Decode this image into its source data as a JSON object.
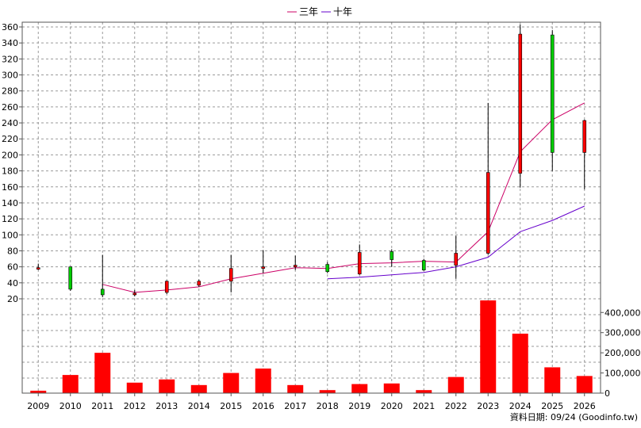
{
  "chart_data": {
    "type": "candlestick+bar",
    "years": [
      "2009",
      "2010",
      "2011",
      "2012",
      "2013",
      "2014",
      "2015",
      "2016",
      "2017",
      "2018",
      "2019",
      "2020",
      "2021",
      "2022",
      "2023",
      "2024",
      "2025",
      "2026"
    ],
    "legend": {
      "placement": "top-center",
      "items": [
        "三年",
        "十年"
      ]
    },
    "colors": {
      "up": "#ff0000",
      "down": "#00cc00",
      "volume": "#ff0000",
      "ma3": "#cc0066",
      "ma10": "#6600cc",
      "wick": "#000000"
    },
    "price_axis": {
      "min": 20,
      "max": 360,
      "ticks": [
        20,
        40,
        60,
        80,
        100,
        120,
        140,
        160,
        180,
        200,
        220,
        240,
        260,
        280,
        300,
        320,
        340,
        360
      ],
      "tick_labels": [
        "20",
        "40",
        "60",
        "80",
        "100",
        "120",
        "140",
        "160",
        "180",
        "200",
        "220",
        "240",
        "260",
        "280",
        "300",
        "320",
        "340",
        "360"
      ]
    },
    "volume_axis": {
      "min": 0,
      "max": 460000,
      "ticks": [
        0,
        100000,
        200000,
        300000,
        400000
      ],
      "tick_labels": [
        "0",
        "100,000",
        "200,000",
        "300,000",
        "400,000"
      ]
    },
    "candles": [
      {
        "year": "2009",
        "open": 59,
        "close": 59,
        "high": 64,
        "low": 56
      },
      {
        "year": "2010",
        "open": 60,
        "close": 32,
        "high": 60,
        "low": 30
      },
      {
        "year": "2011",
        "open": 32,
        "close": 25,
        "high": 75,
        "low": 22
      },
      {
        "year": "2012",
        "open": 26,
        "close": 27,
        "high": 31,
        "low": 23
      },
      {
        "year": "2013",
        "open": 28,
        "close": 42,
        "high": 43,
        "low": 26
      },
      {
        "year": "2014",
        "open": 37,
        "close": 42,
        "high": 44,
        "low": 35
      },
      {
        "year": "2015",
        "open": 42,
        "close": 58,
        "high": 75,
        "low": 28
      },
      {
        "year": "2016",
        "open": 59,
        "close": 60,
        "high": 81,
        "low": 52
      },
      {
        "year": "2017",
        "open": 60,
        "close": 62,
        "high": 74,
        "low": 56
      },
      {
        "year": "2018",
        "open": 63,
        "close": 54,
        "high": 66,
        "low": 52
      },
      {
        "year": "2019",
        "open": 51,
        "close": 78,
        "high": 88,
        "low": 50
      },
      {
        "year": "2020",
        "open": 79,
        "close": 69,
        "high": 82,
        "low": 60
      },
      {
        "year": "2021",
        "open": 68,
        "close": 56,
        "high": 70,
        "low": 55
      },
      {
        "year": "2022",
        "open": 62,
        "close": 77,
        "high": 99,
        "low": 45
      },
      {
        "year": "2023",
        "open": 77,
        "close": 178,
        "high": 265,
        "low": 75
      },
      {
        "year": "2024",
        "open": 177,
        "close": 351,
        "high": 363,
        "low": 159
      },
      {
        "year": "2025",
        "open": 350,
        "close": 203,
        "high": 356,
        "low": 180
      },
      {
        "year": "2026",
        "open": 203,
        "close": 243,
        "high": 244,
        "low": 157
      }
    ],
    "ma_series": [
      {
        "name": "三年",
        "start": "2011",
        "values": [
          38,
          28,
          31,
          35,
          45,
          52,
          59,
          58,
          64,
          65,
          67,
          66,
          104,
          204,
          244,
          265
        ]
      },
      {
        "name": "十年",
        "start": "2018",
        "values": [
          45,
          47,
          50,
          53,
          60,
          72,
          104,
          118,
          136
        ]
      }
    ],
    "volume": [
      12000,
      90000,
      200000,
      52000,
      68000,
      40000,
      100000,
      122000,
      40000,
      15000,
      45000,
      48000,
      15000,
      80000,
      460000,
      295000,
      128000,
      85000
    ],
    "footer": "資料日期: 09/24  (Goodinfo.tw)"
  }
}
